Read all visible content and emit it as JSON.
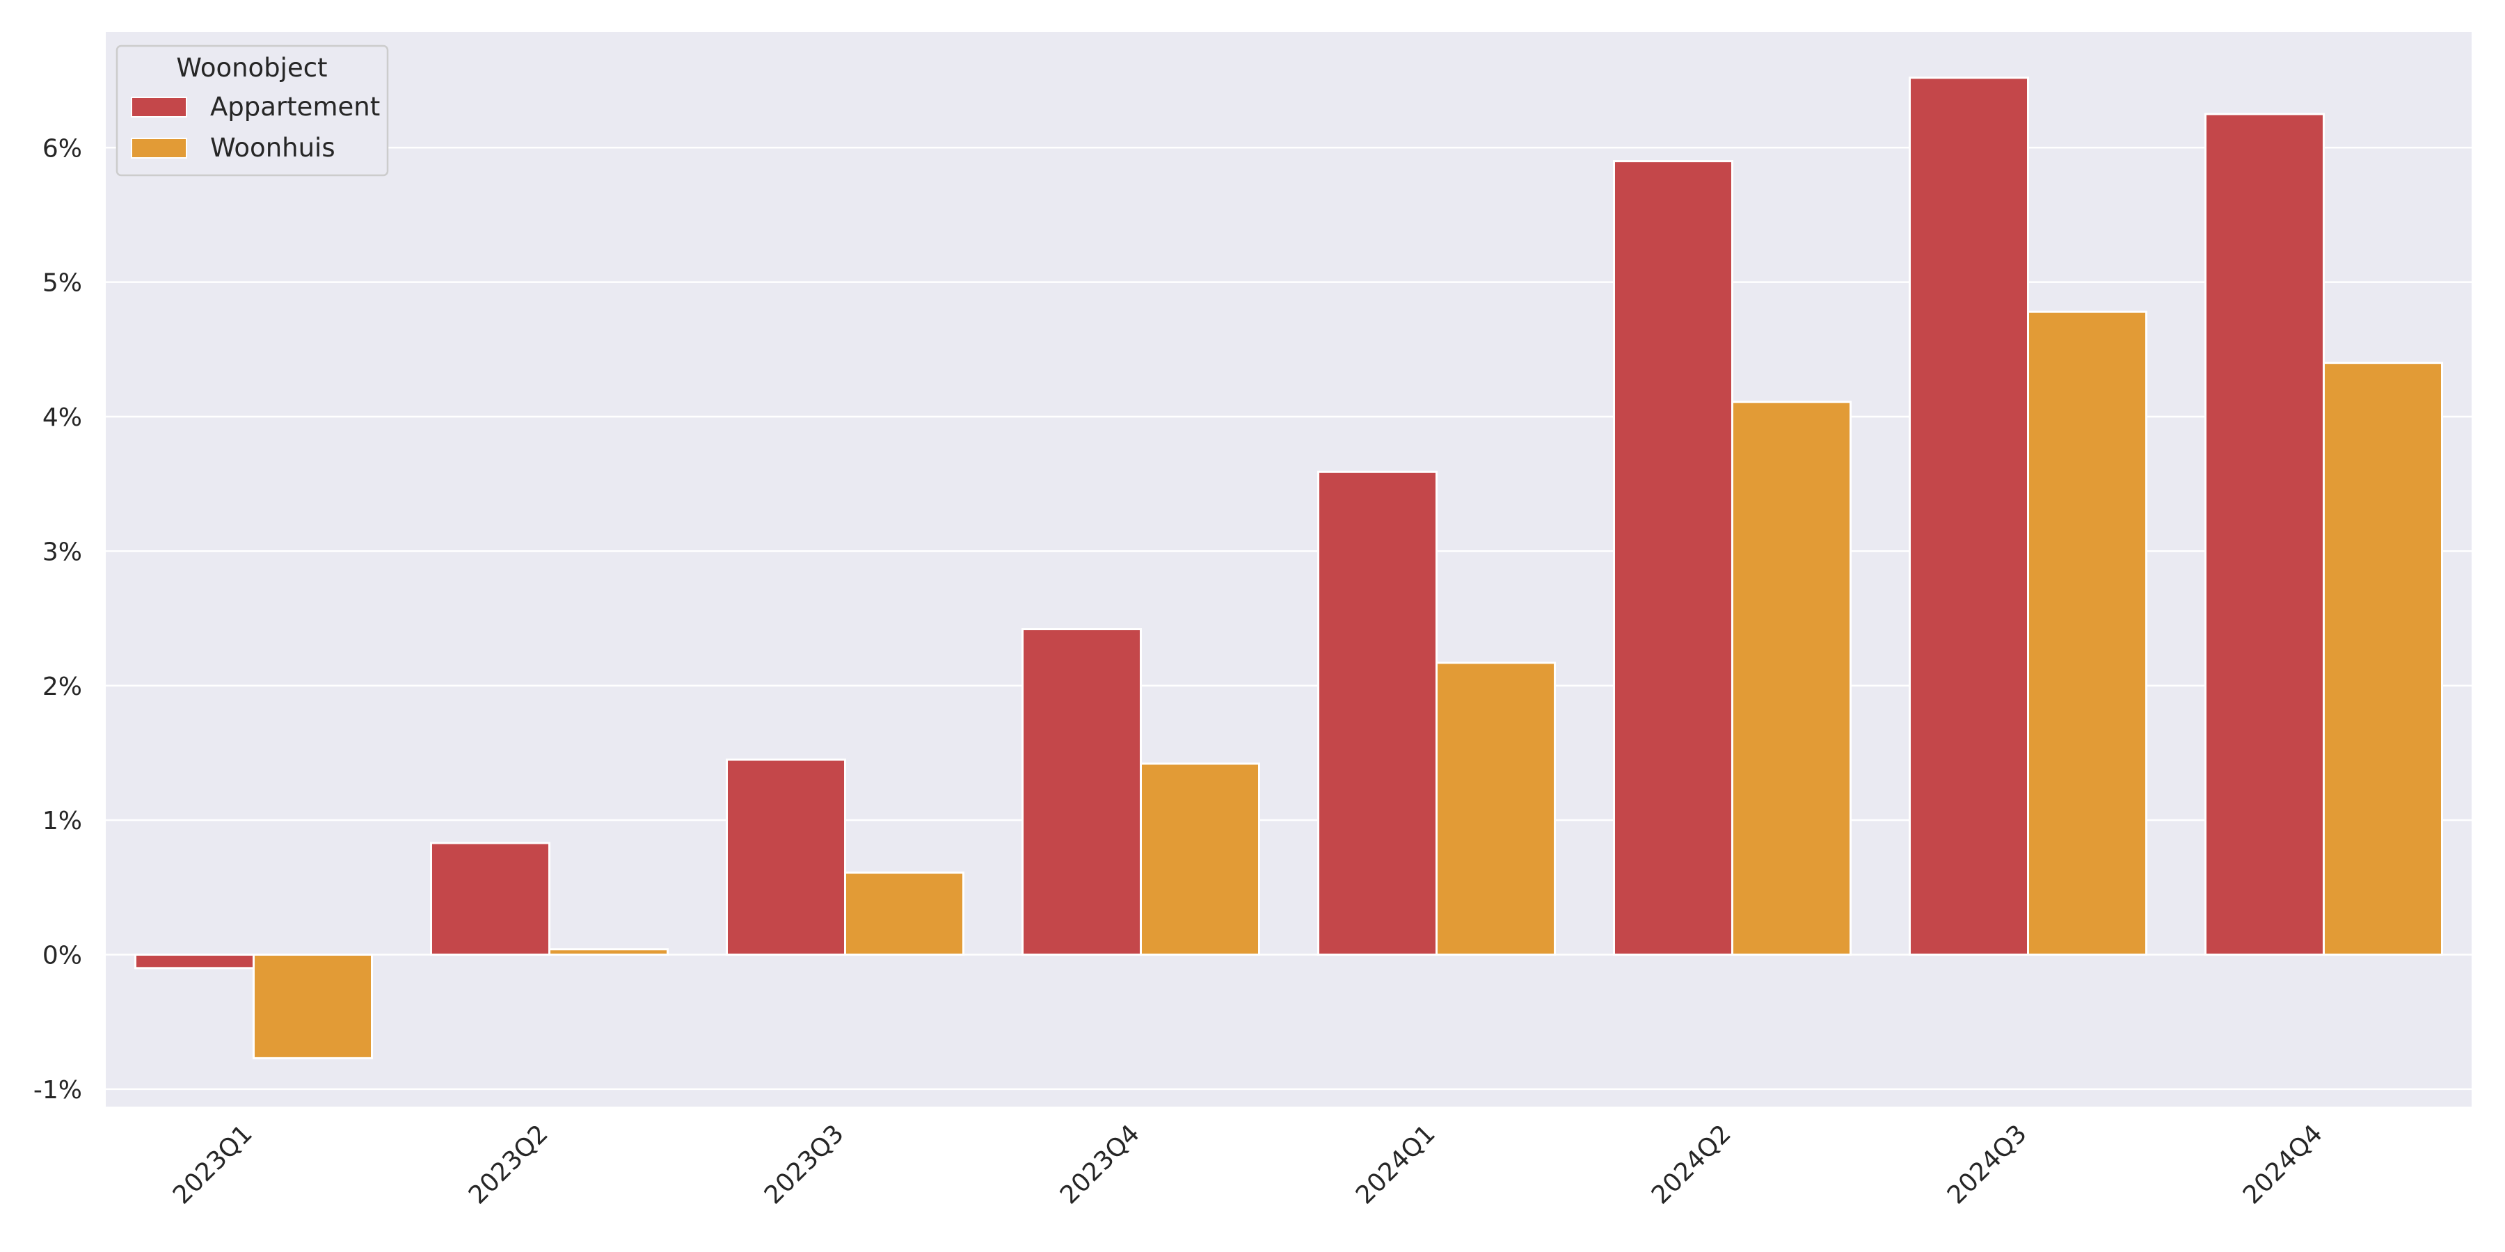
{
  "chart_data": {
    "type": "bar",
    "categories": [
      "2023Q1",
      "2023Q2",
      "2023Q3",
      "2023Q4",
      "2024Q1",
      "2024Q2",
      "2024Q3",
      "2024Q4"
    ],
    "series": [
      {
        "name": "Appartement",
        "color": "#c4474a",
        "values": [
          -0.1,
          0.83,
          1.45,
          2.42,
          3.59,
          5.9,
          6.52,
          6.25
        ]
      },
      {
        "name": "Woonhuis",
        "color": "#e29b36",
        "values": [
          -0.77,
          0.04,
          0.61,
          1.42,
          2.17,
          4.11,
          4.78,
          4.4
        ]
      }
    ],
    "yticks": [
      -1,
      0,
      1,
      2,
      3,
      4,
      5,
      6
    ],
    "ytick_labels": [
      "-1%",
      "0%",
      "1%",
      "2%",
      "3%",
      "4%",
      "5%",
      "6%"
    ],
    "ylim": [
      -1.13,
      6.86
    ],
    "title": "",
    "xlabel": "",
    "ylabel": "",
    "grid": true,
    "background": "#eaeaf2",
    "legend": {
      "title": "Woonobject",
      "position": "top-left"
    }
  }
}
